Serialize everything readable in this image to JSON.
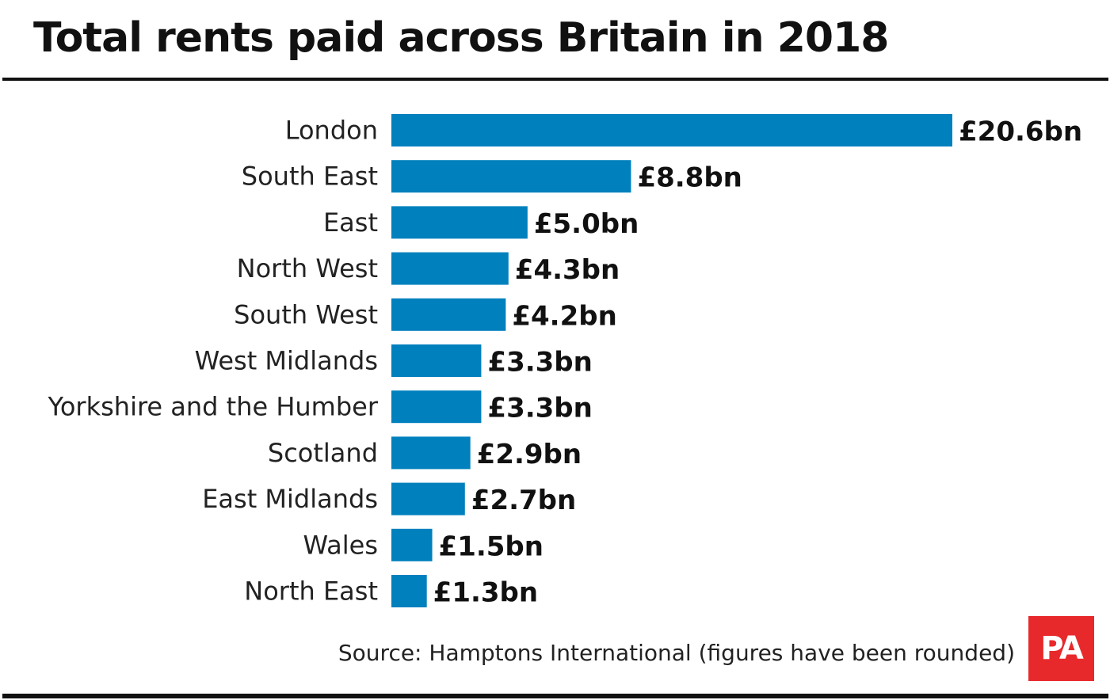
{
  "title": "Total rents paid across Britain in 2018",
  "source": "Source: Hamptons International (figures have been rounded)",
  "logo_text": "PA",
  "colors": {
    "bar": "#0080bd",
    "logo": "#e8292c"
  },
  "chart_data": {
    "type": "bar",
    "orientation": "horizontal",
    "title": "Total rents paid across Britain in 2018",
    "xlabel": "",
    "ylabel": "",
    "grid": false,
    "unit": "£bn",
    "categories": [
      "London",
      "South East",
      "East",
      "North West",
      "South West",
      "West Midlands",
      "Yorkshire and the Humber",
      "Scotland",
      "East Midlands",
      "Wales",
      "North East"
    ],
    "values": [
      20.6,
      8.8,
      5.0,
      4.3,
      4.2,
      3.3,
      3.3,
      2.9,
      2.7,
      1.5,
      1.3
    ],
    "value_labels": [
      "£20.6bn",
      "£8.8bn",
      "£5.0bn",
      "£4.3bn",
      "£4.2bn",
      "£3.3bn",
      "£3.3bn",
      "£2.9bn",
      "£2.7bn",
      "£1.5bn",
      "£1.3bn"
    ]
  }
}
